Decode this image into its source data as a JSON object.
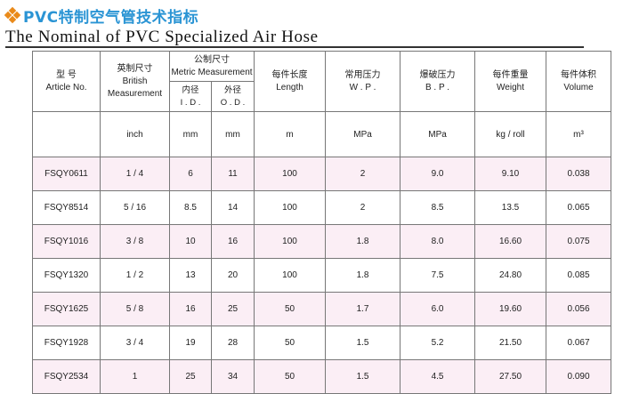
{
  "page": {
    "title_cn": "PVC特制空气管技术指标",
    "title_en": "The Nominal of PVC Specialized Air Hose"
  },
  "colors": {
    "accent_orange": "#e98a1a",
    "title_blue": "#2a94d4",
    "row_pink": "#fbeef5"
  },
  "header": {
    "article": [
      "型  号",
      "Article No."
    ],
    "british": [
      "英制尺寸",
      "British",
      "Measurement"
    ],
    "metric": [
      "公制尺寸",
      "Metric Measurement"
    ],
    "id": [
      "内径",
      "I . D ."
    ],
    "od": [
      "外径",
      "O . D ."
    ],
    "length": [
      "每件长度",
      "Length"
    ],
    "wp": [
      "常用压力",
      "W . P ."
    ],
    "bp": [
      "爆破压力",
      "B . P ."
    ],
    "weight": [
      "每件重量",
      "Weight"
    ],
    "volume": [
      "每件体积",
      "Volume"
    ]
  },
  "units": [
    "inch",
    "mm",
    "mm",
    "m",
    "MPa",
    "MPa",
    "kg / roll",
    "m³"
  ],
  "rows": [
    [
      "FSQY0611",
      "1 / 4",
      "6",
      "11",
      "100",
      "2",
      "9.0",
      "9.10",
      "0.038"
    ],
    [
      "FSQY8514",
      "5 / 16",
      "8.5",
      "14",
      "100",
      "2",
      "8.5",
      "13.5",
      "0.065"
    ],
    [
      "FSQY1016",
      "3 / 8",
      "10",
      "16",
      "100",
      "1.8",
      "8.0",
      "16.60",
      "0.075"
    ],
    [
      "FSQY1320",
      "1 / 2",
      "13",
      "20",
      "100",
      "1.8",
      "7.5",
      "24.80",
      "0.085"
    ],
    [
      "FSQY1625",
      "5 / 8",
      "16",
      "25",
      "50",
      "1.7",
      "6.0",
      "19.60",
      "0.056"
    ],
    [
      "FSQY1928",
      "3 / 4",
      "19",
      "28",
      "50",
      "1.5",
      "5.2",
      "21.50",
      "0.067"
    ],
    [
      "FSQY2534",
      "1",
      "25",
      "34",
      "50",
      "1.5",
      "4.5",
      "27.50",
      "0.090"
    ]
  ]
}
